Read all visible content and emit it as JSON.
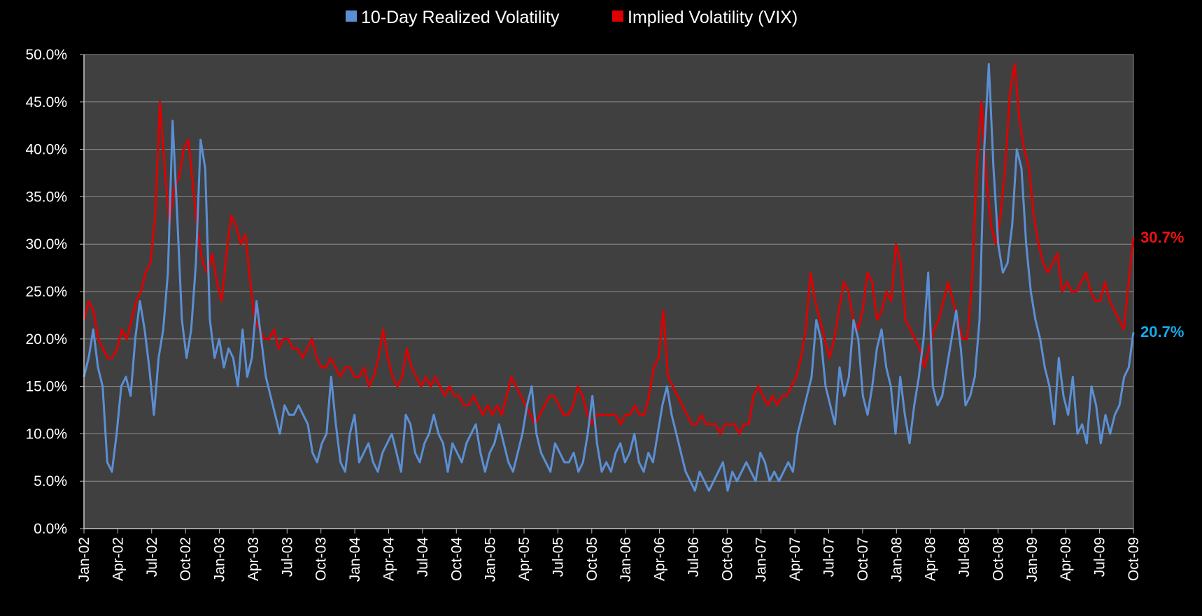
{
  "chart_data": {
    "type": "line",
    "title": "",
    "xlabel": "",
    "ylabel": "",
    "ylim": [
      0,
      50
    ],
    "y_tick_values": [
      0,
      5,
      10,
      15,
      20,
      25,
      30,
      35,
      40,
      45,
      50
    ],
    "y_tick_labels": [
      "0.0%",
      "5.0%",
      "10.0%",
      "15.0%",
      "20.0%",
      "25.0%",
      "30.0%",
      "35.0%",
      "40.0%",
      "45.0%",
      "50.0%"
    ],
    "x_tick_labels": [
      "Jan-02",
      "Apr-02",
      "Jul-02",
      "Oct-02",
      "Jan-03",
      "Apr-03",
      "Jul-03",
      "Oct-03",
      "Jan-04",
      "Apr-04",
      "Jul-04",
      "Oct-04",
      "Jan-05",
      "Apr-05",
      "Jul-05",
      "Oct-05",
      "Jan-06",
      "Apr-06",
      "Jul-06",
      "Oct-06",
      "Jan-07",
      "Apr-07",
      "Jul-07",
      "Oct-07",
      "Jan-08",
      "Apr-08",
      "Jul-08",
      "Oct-08",
      "Jan-09",
      "Apr-09",
      "Jul-09",
      "Oct-09"
    ],
    "grid": true,
    "legend_position": "top-center",
    "plot_background": "#404040",
    "series": [
      {
        "name": "10-Day Realized Volatility",
        "color": "#5b8fd4",
        "end_label": "20.7%",
        "end_label_color": "#17a9e8",
        "values": [
          16,
          18,
          21,
          17,
          15,
          7,
          6,
          10,
          15,
          16,
          14,
          20,
          24,
          21,
          17,
          12,
          18,
          21,
          27,
          43,
          33,
          22,
          18,
          21,
          28,
          41,
          38,
          22,
          18,
          20,
          17,
          19,
          18,
          15,
          21,
          16,
          18,
          24,
          20,
          16,
          14,
          12,
          10,
          13,
          12,
          12,
          13,
          12,
          11,
          8,
          7,
          9,
          10,
          16,
          11,
          7,
          6,
          10,
          12,
          7,
          8,
          9,
          7,
          6,
          8,
          9,
          10,
          8,
          6,
          12,
          11,
          8,
          7,
          9,
          10,
          12,
          10,
          9,
          6,
          9,
          8,
          7,
          9,
          10,
          11,
          8,
          6,
          8,
          9,
          11,
          9,
          7,
          6,
          8,
          10,
          13,
          15,
          10,
          8,
          7,
          6,
          9,
          8,
          7,
          7,
          8,
          6,
          7,
          10,
          14,
          9,
          6,
          7,
          6,
          8,
          9,
          7,
          8,
          10,
          7,
          6,
          8,
          7,
          10,
          13,
          15,
          12,
          10,
          8,
          6,
          5,
          4,
          6,
          5,
          4,
          5,
          6,
          7,
          4,
          6,
          5,
          6,
          7,
          6,
          5,
          8,
          7,
          5,
          6,
          5,
          6,
          7,
          6,
          10,
          12,
          14,
          16,
          22,
          20,
          15,
          13,
          11,
          17,
          14,
          16,
          22,
          20,
          14,
          12,
          15,
          19,
          21,
          17,
          15,
          10,
          16,
          12,
          9,
          13,
          16,
          20,
          27,
          15,
          13,
          14,
          17,
          20,
          23,
          19,
          13,
          14,
          16,
          22,
          40,
          49,
          38,
          30,
          27,
          28,
          32,
          40,
          38,
          30,
          25,
          22,
          20,
          17,
          15,
          11,
          18,
          14,
          12,
          16,
          10,
          11,
          9,
          15,
          13,
          9,
          12,
          10,
          12,
          13,
          16,
          17,
          20.7
        ]
      },
      {
        "name": "Implied Volatility (VIX)",
        "color": "#dd0000",
        "end_label": "30.7%",
        "end_label_color": "#ee1111",
        "values": [
          22,
          24,
          23,
          20,
          19,
          18,
          18,
          19,
          21,
          20,
          22,
          24,
          25,
          27,
          28,
          33,
          45,
          38,
          32,
          36,
          37,
          40,
          41,
          36,
          31,
          28,
          27,
          29,
          26,
          24,
          29,
          33,
          32,
          30,
          31,
          26,
          22,
          21,
          20,
          20,
          21,
          19,
          20,
          20,
          19,
          19,
          18,
          19,
          20,
          18,
          17,
          17,
          18,
          17,
          16,
          17,
          17,
          16,
          16,
          17,
          15,
          16,
          18,
          21,
          18,
          16,
          15,
          16,
          19,
          17,
          16,
          15,
          16,
          15,
          16,
          15,
          14,
          15,
          14,
          14,
          13,
          13,
          14,
          13,
          12,
          13,
          12,
          13,
          12,
          14,
          16,
          15,
          14,
          13,
          12,
          11,
          12,
          13,
          14,
          14,
          13,
          12,
          12,
          13,
          15,
          14,
          12,
          11,
          12,
          12,
          12,
          12,
          12,
          11,
          12,
          12,
          13,
          12,
          12,
          14,
          17,
          18,
          23,
          16,
          15,
          14,
          13,
          12,
          11,
          11,
          12,
          11,
          11,
          11,
          10,
          11,
          11,
          11,
          10,
          11,
          11,
          14,
          15,
          14,
          13,
          14,
          13,
          14,
          14,
          15,
          16,
          18,
          21,
          27,
          24,
          22,
          20,
          18,
          20,
          23,
          26,
          25,
          22,
          21,
          23,
          27,
          26,
          22,
          23,
          25,
          24,
          30,
          28,
          22,
          21,
          20,
          19,
          17,
          19,
          21,
          22,
          24,
          26,
          24,
          22,
          20,
          20,
          26,
          38,
          45,
          37,
          32,
          30,
          33,
          38,
          46,
          49,
          43,
          40,
          38,
          33,
          30,
          28,
          27,
          28,
          29,
          25,
          26,
          25,
          25,
          26,
          27,
          25,
          24,
          24,
          26,
          24,
          23,
          22,
          21,
          26,
          30.7
        ]
      }
    ]
  }
}
